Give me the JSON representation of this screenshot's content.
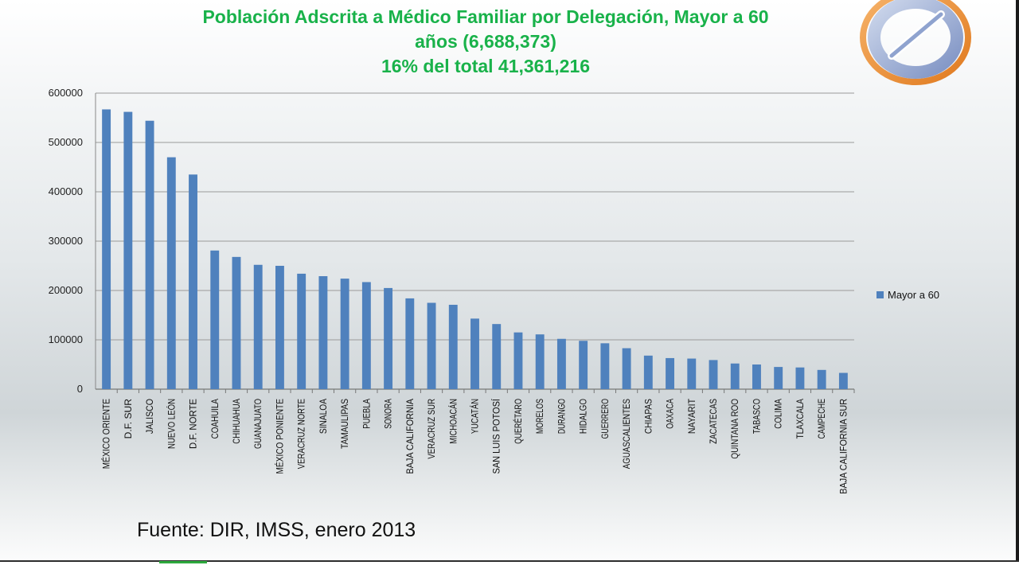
{
  "title": {
    "line1": "Población  Adscrita a Médico Familiar por Delegación, Mayor  a 60",
    "line2": "años (6,688,373)",
    "line3": "16% del total  41,361,216"
  },
  "source": "Fuente: DIR, IMSS, enero 2013",
  "colors": {
    "title": "#19b24a",
    "bar": "#4f81bd",
    "grid": "#9a9a9a"
  },
  "chart_data": {
    "type": "bar",
    "title": "Población  Adscrita a Médico Familiar por Delegación, Mayor  a 60 años (6,688,373) 16% del total  41,361,216",
    "xlabel": "",
    "ylabel": "",
    "ylim": [
      0,
      600000
    ],
    "yticks": [
      "0",
      "100000",
      "200000",
      "300000",
      "400000",
      "500000",
      "600000"
    ],
    "grid": true,
    "legend_position": "right",
    "categories": [
      "MÉXICO ORIENTE",
      "D.F. SUR",
      "JALISCO",
      "NUEVO LEÓN",
      "D.F. NORTE",
      "COAHUILA",
      "CHIHUAHUA",
      "GUANAJUATO",
      "MÉXICO PONIENTE",
      "VERACRUZ NORTE",
      "SINALOA",
      "TAMAULIPAS",
      "PUEBLA",
      "SONORA",
      "BAJA CALIFORNIA",
      "VERACRUZ SUR",
      "MICHOACÁN",
      "YUCATÁN",
      "SAN LUIS POTOSÍ",
      "QUERÉTARO",
      "MORELOS",
      "DURANGO",
      "HIDALGO",
      "GUERRERO",
      "AGUASCALIENTES",
      "CHIAPAS",
      "OAXACA",
      "NAYARIT",
      "ZACATECAS",
      "QUINTANA ROO",
      "TABASCO",
      "COLIMA",
      "TLAXCALA",
      "CAMPECHE",
      "BAJA CALIFORNIA SUR"
    ],
    "series": [
      {
        "name": "Mayor  a 60",
        "values": [
          567000,
          562000,
          544000,
          470000,
          435000,
          281000,
          268000,
          252000,
          250000,
          234000,
          229000,
          224000,
          217000,
          205000,
          184000,
          175000,
          171000,
          143000,
          132000,
          115000,
          111000,
          102000,
          98000,
          93000,
          83000,
          68000,
          63000,
          62000,
          59000,
          52000,
          50000,
          45000,
          44000,
          39000,
          33000
        ]
      }
    ]
  }
}
